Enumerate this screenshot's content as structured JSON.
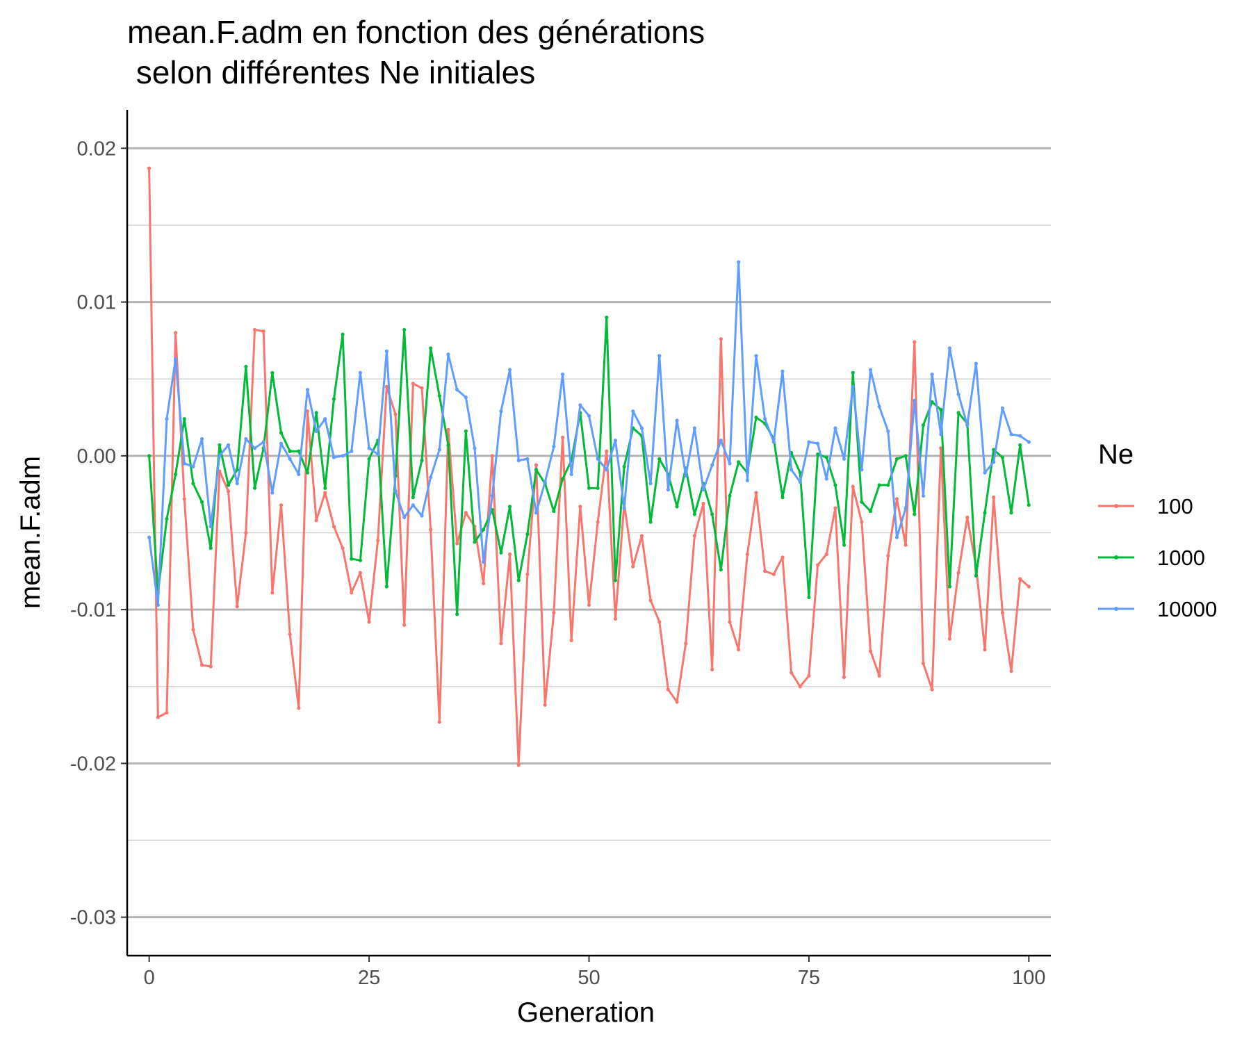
{
  "chart_data": {
    "type": "line",
    "title": "mean.F.adm en fonction des générations",
    "subtitle": " selon différentes Ne initiales",
    "xlabel": "Generation",
    "ylabel": "mean.F.adm",
    "xlim": [
      -2.5,
      102.5
    ],
    "ylim": [
      -0.0325,
      0.0225
    ],
    "x_ticks": [
      0,
      25,
      50,
      75,
      100
    ],
    "x_tick_labels": [
      "0",
      "25",
      "50",
      "75",
      "100"
    ],
    "y_ticks": [
      -0.03,
      -0.02,
      -0.01,
      0.0,
      0.01,
      0.02
    ],
    "y_tick_labels": [
      "-0.03",
      "-0.02",
      "-0.01",
      "0.00",
      "0.01",
      "0.02"
    ],
    "grid": "horizontal major and minor",
    "legend": {
      "title": "Ne",
      "position": "right"
    },
    "x": [
      0,
      1,
      2,
      3,
      4,
      5,
      6,
      7,
      8,
      9,
      10,
      11,
      12,
      13,
      14,
      15,
      16,
      17,
      18,
      19,
      20,
      21,
      22,
      23,
      24,
      25,
      26,
      27,
      28,
      29,
      30,
      31,
      32,
      33,
      34,
      35,
      36,
      37,
      38,
      39,
      40,
      41,
      42,
      43,
      44,
      45,
      46,
      47,
      48,
      49,
      50,
      51,
      52,
      53,
      54,
      55,
      56,
      57,
      58,
      59,
      60,
      61,
      62,
      63,
      64,
      65,
      66,
      67,
      68,
      69,
      70,
      71,
      72,
      73,
      74,
      75,
      76,
      77,
      78,
      79,
      80,
      81,
      82,
      83,
      84,
      85,
      86,
      87,
      88,
      89,
      90,
      91,
      92,
      93,
      94,
      95,
      96,
      97,
      98,
      99,
      100
    ],
    "series": [
      {
        "name": "100",
        "color": "#F8766D",
        "values": [
          0.0187,
          -0.017,
          -0.0167,
          0.008,
          -0.0028,
          -0.0113,
          -0.0136,
          -0.0137,
          -0.001,
          -0.0023,
          -0.0098,
          -0.005,
          0.0082,
          0.0081,
          -0.0089,
          -0.0032,
          -0.0116,
          -0.0164,
          0.0029,
          -0.0042,
          -0.0024,
          -0.0046,
          -0.006,
          -0.0089,
          -0.0076,
          -0.0108,
          -0.0055,
          0.0045,
          0.0027,
          -0.011,
          0.0047,
          0.0044,
          -0.0048,
          -0.0173,
          0.0017,
          -0.0057,
          -0.0037,
          -0.0046,
          -0.0083,
          0.0,
          -0.0122,
          -0.0064,
          -0.0201,
          -0.0077,
          -0.0006,
          -0.0162,
          -0.0102,
          0.0012,
          -0.012,
          -0.0033,
          -0.0097,
          -0.0043,
          0.0003,
          -0.0106,
          -0.0031,
          -0.0072,
          -0.0052,
          -0.0094,
          -0.0108,
          -0.0152,
          -0.016,
          -0.0122,
          -0.0052,
          -0.0031,
          -0.0139,
          0.0076,
          -0.0108,
          -0.0126,
          -0.0064,
          -0.0024,
          -0.0075,
          -0.0077,
          -0.0066,
          -0.0141,
          -0.015,
          -0.0143,
          -0.0071,
          -0.0064,
          -0.0034,
          -0.0144,
          -0.002,
          -0.0043,
          -0.0127,
          -0.0143,
          -0.0065,
          -0.0028,
          -0.0058,
          0.0074,
          -0.0135,
          -0.0152,
          0.0005,
          -0.0119,
          -0.0076,
          -0.004,
          -0.0072,
          -0.0126,
          -0.0027,
          -0.0102,
          -0.014,
          -0.008,
          -0.0085
        ]
      },
      {
        "name": "1000",
        "color": "#00BA38",
        "values": [
          0.0,
          -0.0089,
          -0.0041,
          -0.0012,
          0.0024,
          -0.0018,
          -0.003,
          -0.006,
          0.0007,
          -0.0019,
          -0.0009,
          0.0058,
          -0.0021,
          0.0005,
          0.0054,
          0.0015,
          0.0003,
          0.0003,
          -0.0011,
          0.0028,
          -0.0021,
          0.0037,
          0.0079,
          -0.0067,
          -0.0068,
          -0.0002,
          0.001,
          -0.0085,
          -0.0013,
          0.0082,
          -0.0027,
          -0.0003,
          0.007,
          0.0039,
          0.0007,
          -0.0103,
          0.0016,
          -0.0056,
          -0.0048,
          -0.0035,
          -0.0063,
          -0.0033,
          -0.0081,
          -0.0051,
          -0.0009,
          -0.0018,
          -0.0036,
          -0.0015,
          -0.0003,
          0.0028,
          -0.0021,
          -0.0021,
          0.009,
          -0.0081,
          -0.0007,
          0.0018,
          0.0013,
          -0.0043,
          -0.0002,
          -0.0012,
          -0.0033,
          -0.0008,
          -0.0038,
          -0.0018,
          -0.0038,
          -0.0074,
          -0.0026,
          -0.0004,
          -0.0011,
          0.0025,
          0.0021,
          0.0011,
          -0.0027,
          0.0002,
          -0.0011,
          -0.0092,
          0.0001,
          -0.0001,
          -0.0019,
          -0.0058,
          0.0054,
          -0.003,
          -0.0036,
          -0.0019,
          -0.0019,
          -0.0002,
          0.0,
          -0.0038,
          0.002,
          0.0035,
          0.003,
          -0.0085,
          0.0028,
          0.0021,
          -0.0078,
          -0.0037,
          0.0004,
          -0.0001,
          -0.0037,
          0.0007,
          -0.0032
        ]
      },
      {
        "name": "10000",
        "color": "#619CFF",
        "values": [
          -0.0053,
          -0.0097,
          0.0024,
          0.0063,
          -0.0005,
          -0.0007,
          0.0011,
          -0.0046,
          0.0,
          0.0007,
          -0.0018,
          0.0011,
          0.0005,
          0.0009,
          -0.0024,
          0.0008,
          -0.0002,
          -0.0012,
          0.0043,
          0.0016,
          0.0024,
          -0.0001,
          0.0,
          0.0003,
          0.0054,
          0.0005,
          0.0001,
          0.0068,
          -0.0023,
          -0.004,
          -0.0032,
          -0.0039,
          -0.0014,
          0.0004,
          0.0066,
          0.0043,
          0.0038,
          0.0005,
          -0.0069,
          -0.0026,
          0.0029,
          0.0056,
          -0.0003,
          -0.0002,
          -0.0037,
          -0.0017,
          0.0006,
          0.0053,
          -0.0012,
          0.0033,
          0.0026,
          -0.0002,
          -0.0009,
          0.001,
          -0.0034,
          0.0029,
          0.0018,
          -0.0018,
          0.0065,
          -0.0022,
          0.0023,
          -0.0013,
          0.0018,
          -0.0022,
          -0.0006,
          0.001,
          -0.0005,
          0.0126,
          -0.0016,
          0.0065,
          0.0024,
          0.0009,
          0.0055,
          -0.0009,
          -0.0017,
          0.0009,
          0.0008,
          -0.0015,
          0.0018,
          -0.0002,
          0.0045,
          -0.0009,
          0.0056,
          0.0032,
          0.0016,
          -0.0053,
          -0.0034,
          0.0036,
          -0.0026,
          0.0053,
          0.0014,
          0.007,
          0.004,
          0.002,
          0.006,
          -0.0011,
          -0.0004,
          0.0031,
          0.0014,
          0.0013,
          0.0009
        ]
      }
    ]
  }
}
